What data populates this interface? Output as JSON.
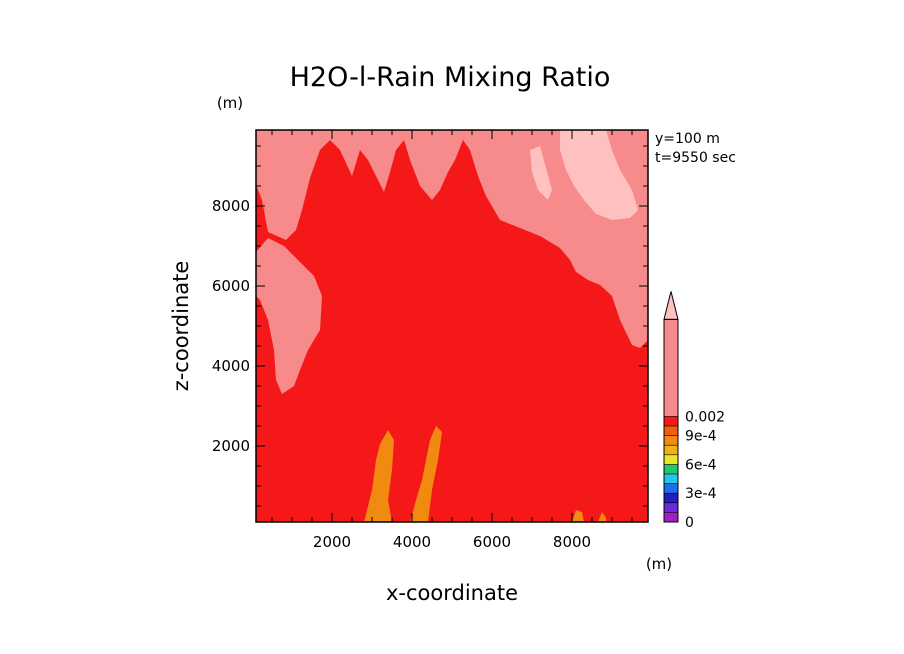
{
  "chart_data": {
    "type": "heatmap",
    "title": "H2O-l-Rain Mixing Ratio",
    "xlabel": "x-coordinate",
    "ylabel": "z-coordinate",
    "x_unit": "(m)",
    "y_unit": "(m)",
    "annotations": [
      "y=100 m",
      "t=9550 sec"
    ],
    "xlim": [
      100,
      9900
    ],
    "ylim": [
      100,
      9900
    ],
    "x_ticks": [
      2000,
      4000,
      6000,
      8000
    ],
    "y_ticks": [
      2000,
      4000,
      6000,
      8000
    ],
    "colorbar": {
      "levels": [
        0,
        0.0001,
        0.0002,
        0.0003,
        0.0004,
        0.0005,
        0.0006,
        0.0007,
        0.0008,
        0.0009,
        0.001,
        0.002
      ],
      "colors": [
        "#a020c8",
        "#6a2ad8",
        "#2020c0",
        "#1e6ee8",
        "#22c8e8",
        "#22c86a",
        "#e8e820",
        "#f0b018",
        "#f08a10",
        "#f06010",
        "#f51818",
        "#f78a8a"
      ],
      "extend_color": "#ffc0c0",
      "tick_labels": [
        "0",
        "3e-4",
        "6e-4",
        "9e-4",
        "0.002"
      ],
      "tick_values": [
        0,
        0.0003,
        0.0006,
        0.0009,
        0.002
      ]
    },
    "regions": [
      {
        "level": "background",
        "color": "#f51818"
      },
      {
        "level": ">0.002",
        "color": "#ffc0c0"
      },
      {
        "level": "0.001-0.002",
        "color": "#f78a8a"
      },
      {
        "level": "9e-4-0.001",
        "color": "#f06010"
      },
      {
        "level": "8e-4-9e-4",
        "color": "#f08a10"
      }
    ]
  }
}
